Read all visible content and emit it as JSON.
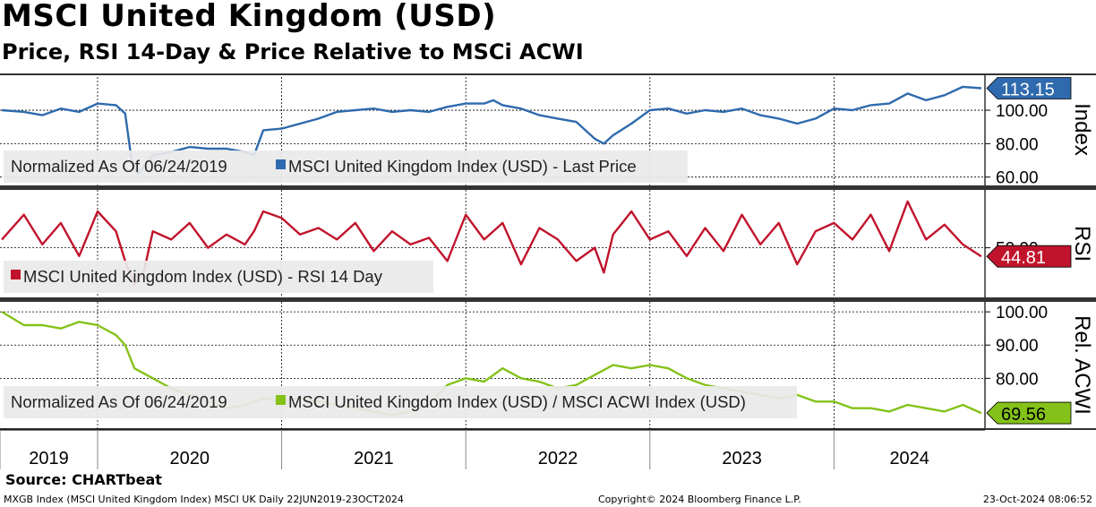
{
  "header": {
    "title": "MSCI United Kingdom (USD)",
    "subtitle": "Price, RSI 14-Day & Price Relative to MSCi ACWI"
  },
  "footer": {
    "source": "Source: CHARTbeat",
    "left": "MXGB Index (MSCI United Kingdom Index) MSCI UK  Daily 22JUN2019-23OCT2024",
    "center": "Copyright© 2024 Bloomberg Finance L.P.",
    "right": "23-Oct-2024 08:06:52"
  },
  "colors": {
    "price": "#2e6aad",
    "rsi": "#c0142c",
    "rel": "#84c219",
    "grid": "#000000"
  },
  "chart_data": {
    "type": "line",
    "x_range": [
      "2019-06-22",
      "2024-10-23"
    ],
    "years": [
      "2019",
      "2020",
      "2021",
      "2022",
      "2023",
      "2024"
    ],
    "panels": [
      {
        "id": "price",
        "axis_title": "Index",
        "ylim": [
          55,
          122
        ],
        "ticks": [
          60,
          80,
          100
        ],
        "tick_labels": [
          "60.00",
          "80.00",
          "100.00"
        ],
        "legend_prefix": "Normalized As Of 06/24/2019",
        "series_name": "MSCI United Kingdom Index (USD) - Last Price",
        "last_value_label": "113.15",
        "x": [
          2019.48,
          2019.6,
          2019.7,
          2019.8,
          2019.9,
          2020.0,
          2020.1,
          2020.15,
          2020.19,
          2020.22,
          2020.3,
          2020.4,
          2020.5,
          2020.6,
          2020.7,
          2020.8,
          2020.85,
          2020.9,
          2021.0,
          2021.1,
          2021.2,
          2021.3,
          2021.4,
          2021.5,
          2021.6,
          2021.7,
          2021.8,
          2021.9,
          2022.0,
          2022.1,
          2022.15,
          2022.2,
          2022.3,
          2022.4,
          2022.5,
          2022.6,
          2022.7,
          2022.75,
          2022.8,
          2022.9,
          2023.0,
          2023.1,
          2023.2,
          2023.3,
          2023.4,
          2023.5,
          2023.6,
          2023.7,
          2023.8,
          2023.9,
          2024.0,
          2024.1,
          2024.2,
          2024.3,
          2024.4,
          2024.5,
          2024.6,
          2024.7,
          2024.8
        ],
        "y": [
          100,
          99,
          97,
          101,
          99,
          104,
          103,
          98,
          66,
          62,
          73,
          75,
          78,
          77,
          77,
          75,
          73,
          88,
          89,
          92,
          95,
          99,
          100,
          101,
          99,
          100,
          99,
          102,
          104,
          104,
          106,
          103,
          101,
          97,
          95,
          93,
          83,
          80,
          85,
          92,
          100,
          101,
          98,
          100,
          99,
          101,
          97,
          95,
          92,
          95,
          101,
          100,
          103,
          104,
          110,
          106,
          109,
          114,
          113.15
        ]
      },
      {
        "id": "rsi",
        "axis_title": "RSI",
        "ylim": [
          20,
          85
        ],
        "ticks": [
          50
        ],
        "tick_labels": [
          "50.00"
        ],
        "legend_prefix": "",
        "series_name": "MSCI United Kingdom Index (USD) - RSI 14 Day",
        "last_value_label": "44.81",
        "x": [
          2019.48,
          2019.6,
          2019.7,
          2019.8,
          2019.9,
          2020.0,
          2020.1,
          2020.15,
          2020.2,
          2020.25,
          2020.3,
          2020.4,
          2020.5,
          2020.6,
          2020.7,
          2020.8,
          2020.85,
          2020.9,
          2021.0,
          2021.1,
          2021.2,
          2021.3,
          2021.4,
          2021.5,
          2021.6,
          2021.7,
          2021.8,
          2021.9,
          2022.0,
          2022.1,
          2022.2,
          2022.3,
          2022.4,
          2022.5,
          2022.6,
          2022.7,
          2022.75,
          2022.8,
          2022.9,
          2023.0,
          2023.1,
          2023.2,
          2023.3,
          2023.4,
          2023.5,
          2023.6,
          2023.7,
          2023.8,
          2023.9,
          2024.0,
          2024.1,
          2024.2,
          2024.3,
          2024.4,
          2024.5,
          2024.6,
          2024.7,
          2024.8
        ],
        "y": [
          55,
          70,
          52,
          65,
          45,
          72,
          60,
          42,
          28,
          35,
          60,
          55,
          65,
          50,
          58,
          52,
          60,
          72,
          68,
          58,
          62,
          55,
          65,
          48,
          60,
          52,
          56,
          42,
          70,
          55,
          65,
          40,
          62,
          55,
          42,
          50,
          35,
          58,
          72,
          55,
          60,
          45,
          62,
          48,
          70,
          52,
          65,
          40,
          60,
          65,
          55,
          70,
          48,
          78,
          55,
          64,
          52,
          44.81
        ]
      },
      {
        "id": "rel",
        "axis_title": "Rel. ACWI",
        "ylim": [
          65,
          103
        ],
        "ticks": [
          80,
          90,
          100
        ],
        "tick_labels": [
          "80.00",
          "90.00",
          "100.00"
        ],
        "legend_prefix": "Normalized As Of 06/24/2019",
        "series_name": "MSCI United Kingdom Index (USD) / MSCI ACWI Index (USD)",
        "last_value_label": "69.56",
        "x": [
          2019.48,
          2019.6,
          2019.7,
          2019.8,
          2019.9,
          2020.0,
          2020.1,
          2020.15,
          2020.2,
          2020.3,
          2020.4,
          2020.5,
          2020.6,
          2020.7,
          2020.8,
          2020.9,
          2021.0,
          2021.1,
          2021.2,
          2021.3,
          2021.4,
          2021.5,
          2021.6,
          2021.7,
          2021.8,
          2021.9,
          2022.0,
          2022.1,
          2022.2,
          2022.3,
          2022.4,
          2022.5,
          2022.6,
          2022.7,
          2022.8,
          2022.9,
          2023.0,
          2023.1,
          2023.2,
          2023.3,
          2023.4,
          2023.5,
          2023.6,
          2023.7,
          2023.8,
          2023.9,
          2024.0,
          2024.1,
          2024.2,
          2024.3,
          2024.4,
          2024.5,
          2024.6,
          2024.7,
          2024.8
        ],
        "y": [
          100,
          96,
          96,
          95,
          97,
          96,
          93,
          90,
          83,
          80,
          77,
          75,
          73,
          71,
          72,
          74,
          73,
          74,
          73,
          72,
          71,
          70,
          69,
          70,
          72,
          78,
          80,
          79,
          83,
          80,
          79,
          77,
          78,
          81,
          84,
          83,
          84,
          83,
          80,
          78,
          77,
          76,
          75,
          74,
          75,
          73,
          73,
          71,
          71,
          70,
          72,
          71,
          70,
          72,
          69.56
        ]
      }
    ]
  }
}
